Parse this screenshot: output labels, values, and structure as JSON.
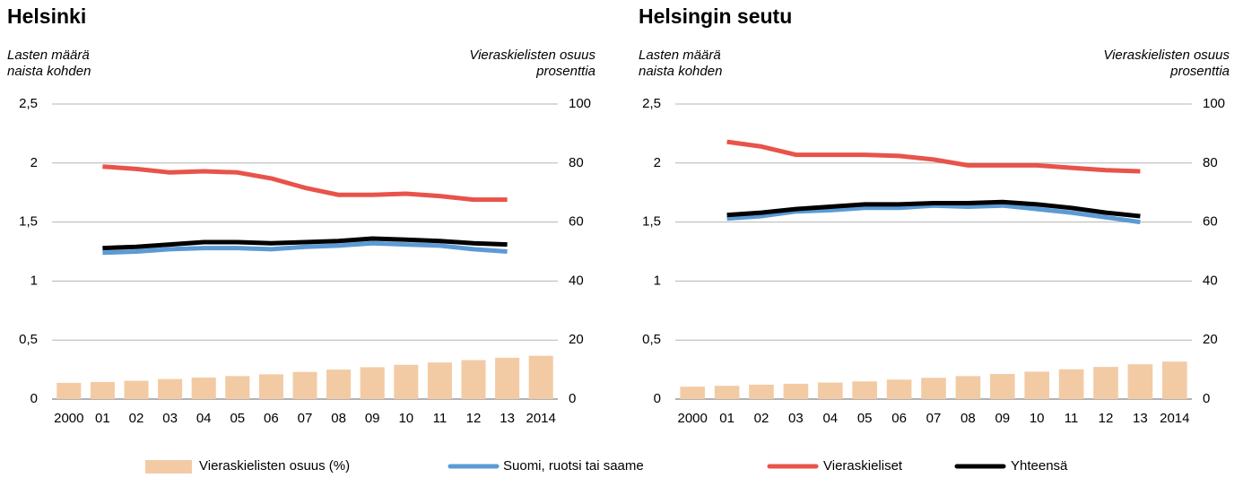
{
  "chart_data": [
    {
      "type": "combo",
      "title": "Helsinki",
      "y_label": [
        "Lasten määrä",
        "naista kohden"
      ],
      "y2_label": [
        "Vieraskielisten osuus",
        "prosenttia"
      ],
      "categories": [
        "2000",
        "01",
        "02",
        "03",
        "04",
        "05",
        "06",
        "07",
        "08",
        "09",
        "10",
        "11",
        "12",
        "13",
        "2014"
      ],
      "ylim": [
        0,
        2.5
      ],
      "yticks": [
        0,
        {
          "value": 0.5,
          "label": "0,5"
        },
        1,
        {
          "value": 1.5,
          "label": "1,5"
        },
        2,
        {
          "value": 2.5,
          "label": "2,5"
        }
      ],
      "y2lim": [
        0,
        100
      ],
      "y2ticks": [
        0,
        20,
        40,
        60,
        80,
        100
      ],
      "grid": true,
      "series": [
        {
          "name": "Vieraskielisten osuus (%)",
          "type": "bar",
          "axis": "y2",
          "color": "#f2cba5",
          "values": [
            5.5,
            5.8,
            6.2,
            6.8,
            7.3,
            7.8,
            8.4,
            9.2,
            10.0,
            10.8,
            11.6,
            12.4,
            13.2,
            14.0,
            14.7
          ]
        },
        {
          "name": "Suomi, ruotsi tai saame",
          "type": "line",
          "color": "#5b9bd5",
          "values": [
            null,
            1.24,
            1.25,
            1.27,
            1.28,
            1.28,
            1.27,
            1.29,
            1.3,
            1.32,
            1.31,
            1.3,
            1.27,
            1.25,
            null
          ]
        },
        {
          "name": "Vieraskieliset",
          "type": "line",
          "color": "#e8534a",
          "values": [
            null,
            1.97,
            1.95,
            1.92,
            1.93,
            1.92,
            1.87,
            1.79,
            1.73,
            1.73,
            1.74,
            1.72,
            1.69,
            1.69,
            null
          ]
        },
        {
          "name": "Yhteensä",
          "type": "line",
          "color": "#000000",
          "values": [
            null,
            1.28,
            1.29,
            1.31,
            1.33,
            1.33,
            1.32,
            1.33,
            1.34,
            1.36,
            1.35,
            1.34,
            1.32,
            1.31,
            null
          ]
        }
      ]
    },
    {
      "type": "combo",
      "title": "Helsingin seutu",
      "y_label": [
        "Lasten määrä",
        "naista kohden"
      ],
      "y2_label": [
        "Vieraskielisten osuus",
        "prosenttia"
      ],
      "categories": [
        "2000",
        "01",
        "02",
        "03",
        "04",
        "05",
        "06",
        "07",
        "08",
        "09",
        "10",
        "11",
        "12",
        "13",
        "2014"
      ],
      "ylim": [
        0,
        2.5
      ],
      "yticks": [
        0,
        {
          "value": 0.5,
          "label": "0,5"
        },
        1,
        {
          "value": 1.5,
          "label": "1,5"
        },
        2,
        {
          "value": 2.5,
          "label": "2,5"
        }
      ],
      "y2lim": [
        0,
        100
      ],
      "y2ticks": [
        0,
        20,
        40,
        60,
        80,
        100
      ],
      "grid": true,
      "series": [
        {
          "type": "bar",
          "axis": "y2",
          "color": "#f2cba5",
          "values": [
            4.2,
            4.5,
            4.9,
            5.2,
            5.6,
            6.0,
            6.6,
            7.2,
            7.8,
            8.5,
            9.3,
            10.1,
            10.9,
            11.8,
            12.7
          ]
        },
        {
          "type": "line",
          "color": "#5b9bd5",
          "values": [
            null,
            1.53,
            1.55,
            1.59,
            1.6,
            1.62,
            1.62,
            1.64,
            1.63,
            1.64,
            1.61,
            1.58,
            1.54,
            1.5,
            null
          ]
        },
        {
          "type": "line",
          "color": "#e8534a",
          "values": [
            null,
            2.18,
            2.14,
            2.07,
            2.07,
            2.07,
            2.06,
            2.03,
            1.98,
            1.98,
            1.98,
            1.96,
            1.94,
            1.93,
            null
          ]
        },
        {
          "type": "line",
          "color": "#000000",
          "values": [
            null,
            1.56,
            1.58,
            1.61,
            1.63,
            1.65,
            1.65,
            1.66,
            1.66,
            1.67,
            1.65,
            1.62,
            1.58,
            1.55,
            null
          ]
        }
      ]
    }
  ]
}
